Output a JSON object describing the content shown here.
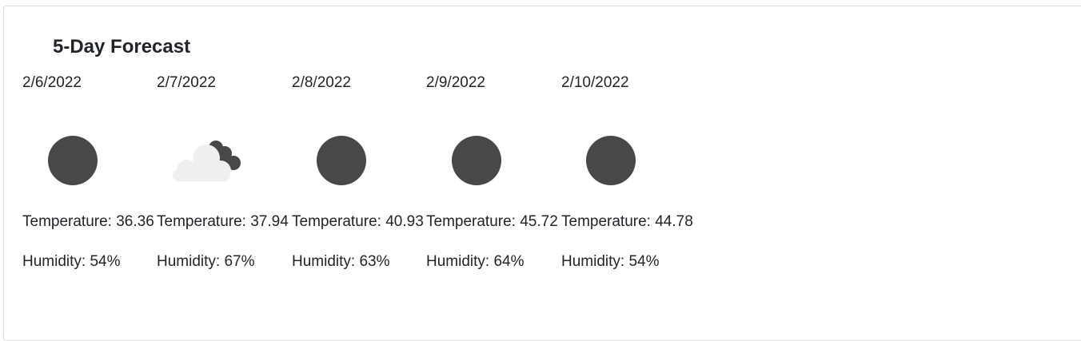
{
  "forecast": {
    "title": "5-Day Forecast",
    "days": [
      {
        "date": "2/6/2022",
        "icon": "full-moon-icon",
        "temperature": "Temperature: 36.36",
        "humidity": "Humidity: 54%"
      },
      {
        "date": "2/7/2022",
        "icon": "partly-cloudy-night-icon",
        "temperature": "Temperature: 37.94",
        "humidity": "Humidity: 67%"
      },
      {
        "date": "2/8/2022",
        "icon": "full-moon-icon",
        "temperature": "Temperature: 40.93",
        "humidity": "Humidity: 63%"
      },
      {
        "date": "2/9/2022",
        "icon": "full-moon-icon",
        "temperature": "Temperature: 45.72",
        "humidity": "Humidity: 64%"
      },
      {
        "date": "2/10/2022",
        "icon": "full-moon-icon",
        "temperature": "Temperature: 44.78",
        "humidity": "Humidity: 54%"
      }
    ]
  },
  "colors": {
    "moon": "#48484a",
    "cloud": "#efefef",
    "text": "#212529",
    "border": "#dfdfdf"
  }
}
